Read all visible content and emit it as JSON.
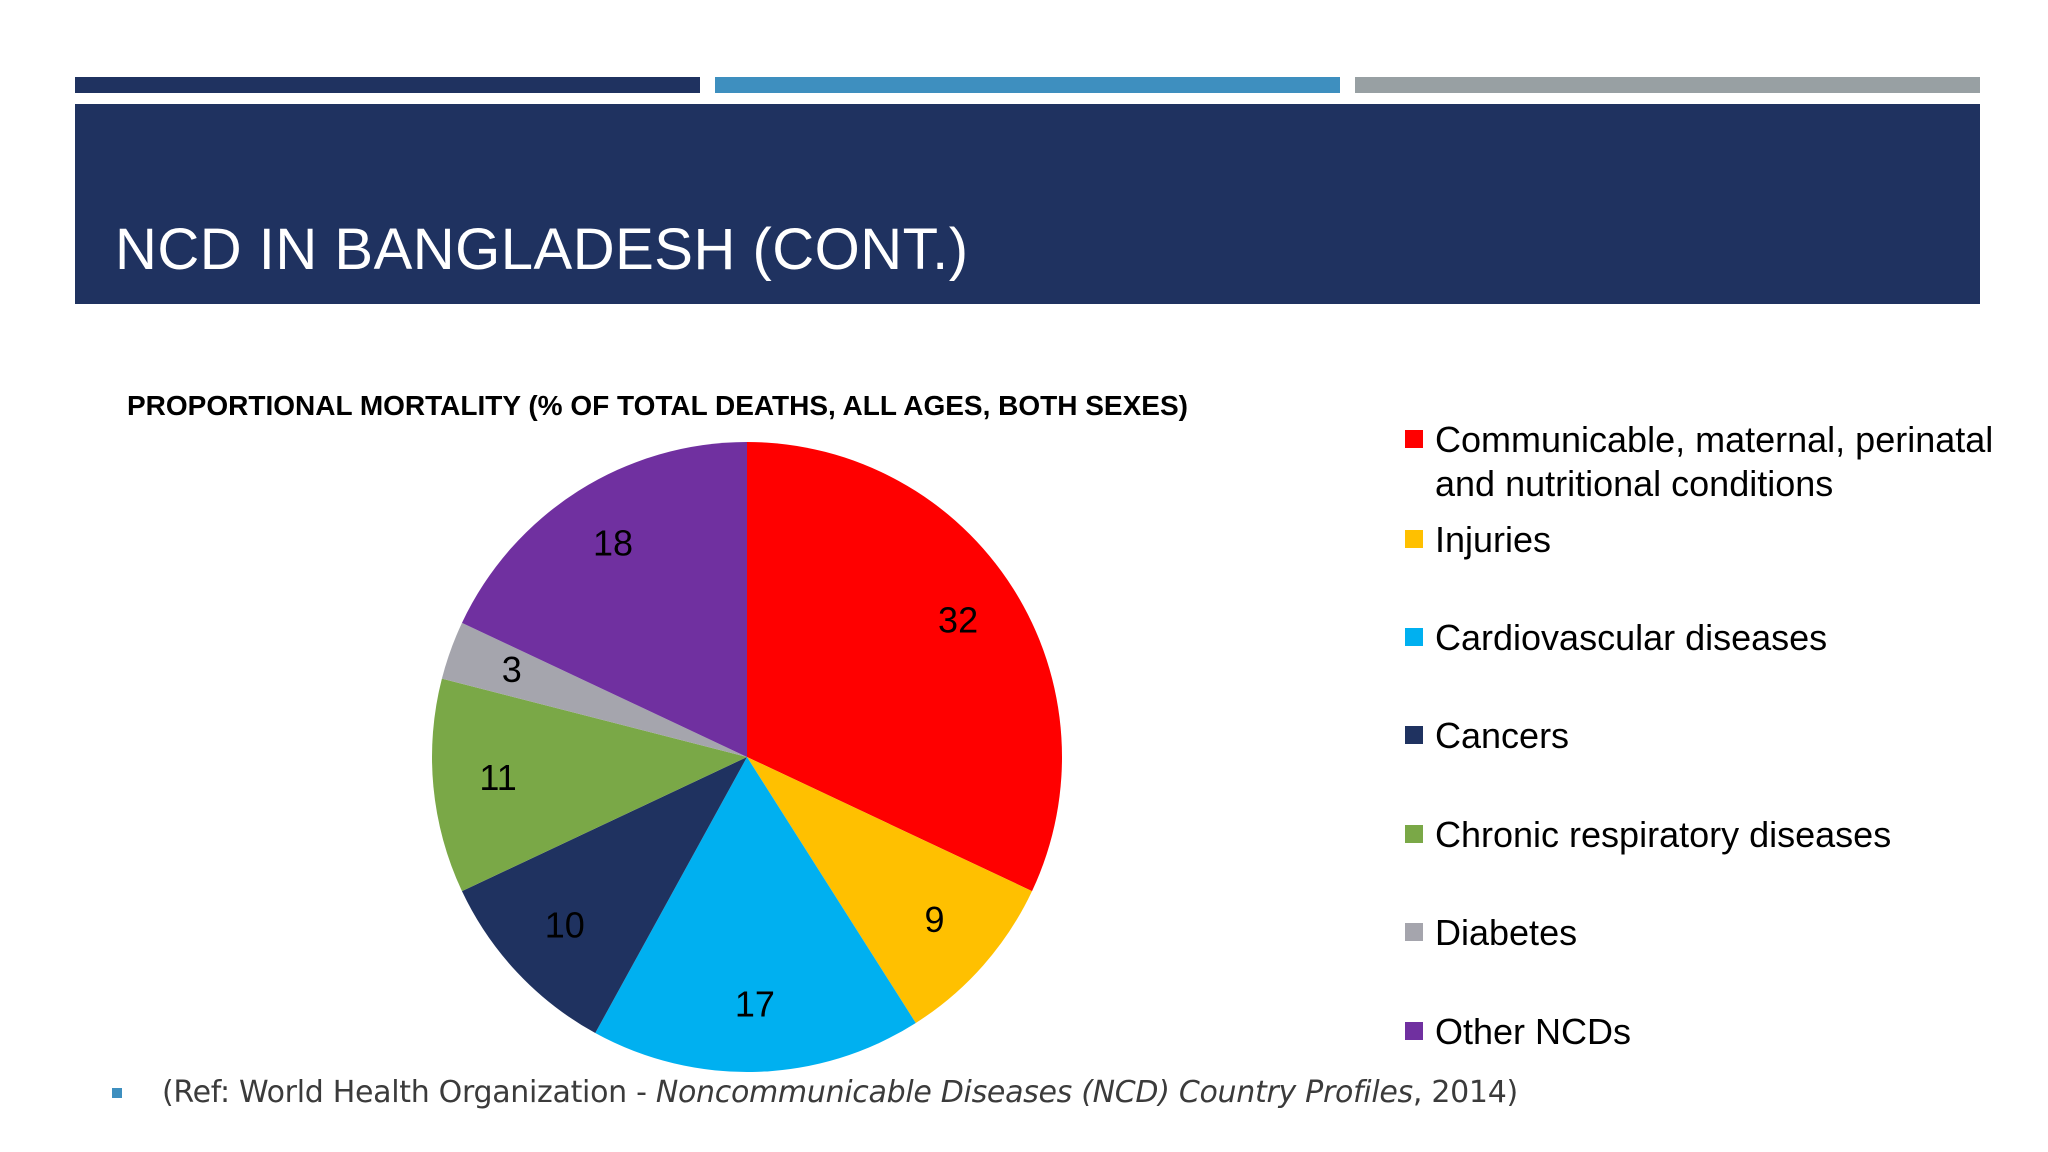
{
  "slide": {
    "title": "NCD IN BANGLADESH (CONT.)",
    "accent_colors": [
      "#1f3260",
      "#3e8fbf",
      "#98a0a3"
    ],
    "band_color": "#1f3260"
  },
  "chart_data": {
    "type": "pie",
    "title": "PROPORTIONAL MORTALITY (% OF TOTAL DEATHS, ALL AGES, BOTH SEXES)",
    "categories": [
      "Communicable, maternal, perinatal and nutritional conditions",
      "Injuries",
      "Cardiovascular diseases",
      "Cancers",
      "Chronic respiratory diseases",
      "Diabetes",
      "Other NCDs"
    ],
    "values": [
      32,
      9,
      17,
      10,
      11,
      3,
      18
    ],
    "colors": [
      "#ff0000",
      "#ffc000",
      "#00b0f0",
      "#1f3260",
      "#7aa847",
      "#a5a5ad",
      "#7030a0"
    ],
    "legend_position": "right"
  },
  "reference": {
    "prefix": "(Ref: World Health Organization - ",
    "source_title": "Noncommunicable Diseases (NCD) Country Profiles",
    "suffix": ", 2014)"
  }
}
